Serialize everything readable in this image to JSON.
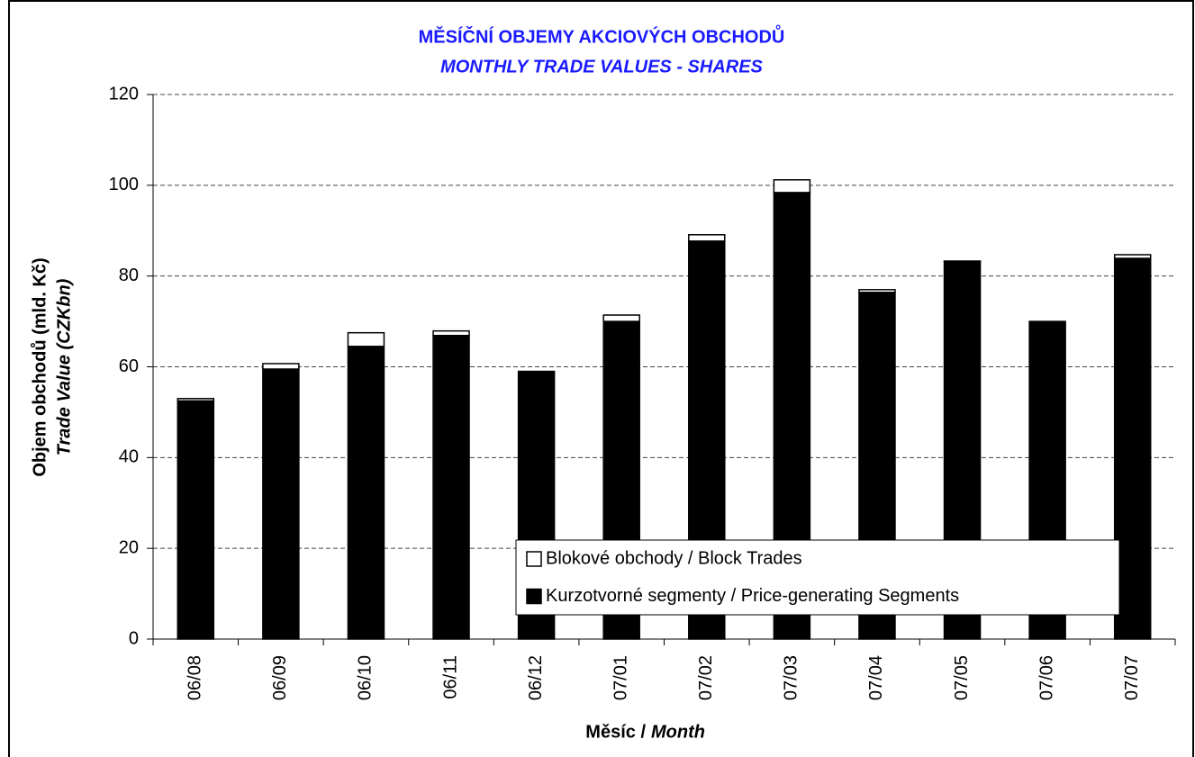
{
  "chart_data": {
    "type": "stacked_bar",
    "title": "MĚSÍČNÍ OBJEMY AKCIOVÝCH OBCHODŮ",
    "subtitle": "MONTHLY TRADE VALUES - SHARES",
    "ylabel": "Objem obchodů (mld. Kč)",
    "ylabel_italic": "Trade Value (CZKbn)",
    "xlabel": "Měsíc /",
    "xlabel_italic": "Month",
    "categories": [
      "06/08",
      "06/09",
      "06/10",
      "06/11",
      "06/12",
      "07/01",
      "07/02",
      "07/03",
      "07/04",
      "07/05",
      "07/06",
      "07/07"
    ],
    "series": [
      {
        "name": "Kurzotvorné segmenty / Price-generating Segments",
        "color": "#000000",
        "values": [
          52.5,
          59.5,
          64.5,
          66.9,
          59,
          70,
          87.7,
          98.4,
          76.4,
          83.2,
          70,
          83.9
        ]
      },
      {
        "name": "Blokové obchody / Block Trades",
        "color": "#ffffff",
        "values": [
          0.5,
          1.2,
          3,
          1,
          0,
          1.4,
          1.4,
          2.8,
          0.6,
          0.1,
          0,
          0.8
        ]
      }
    ],
    "ylim": [
      0,
      120
    ],
    "yticks": [
      0,
      20,
      40,
      60,
      80,
      100,
      120
    ],
    "grid": true
  }
}
